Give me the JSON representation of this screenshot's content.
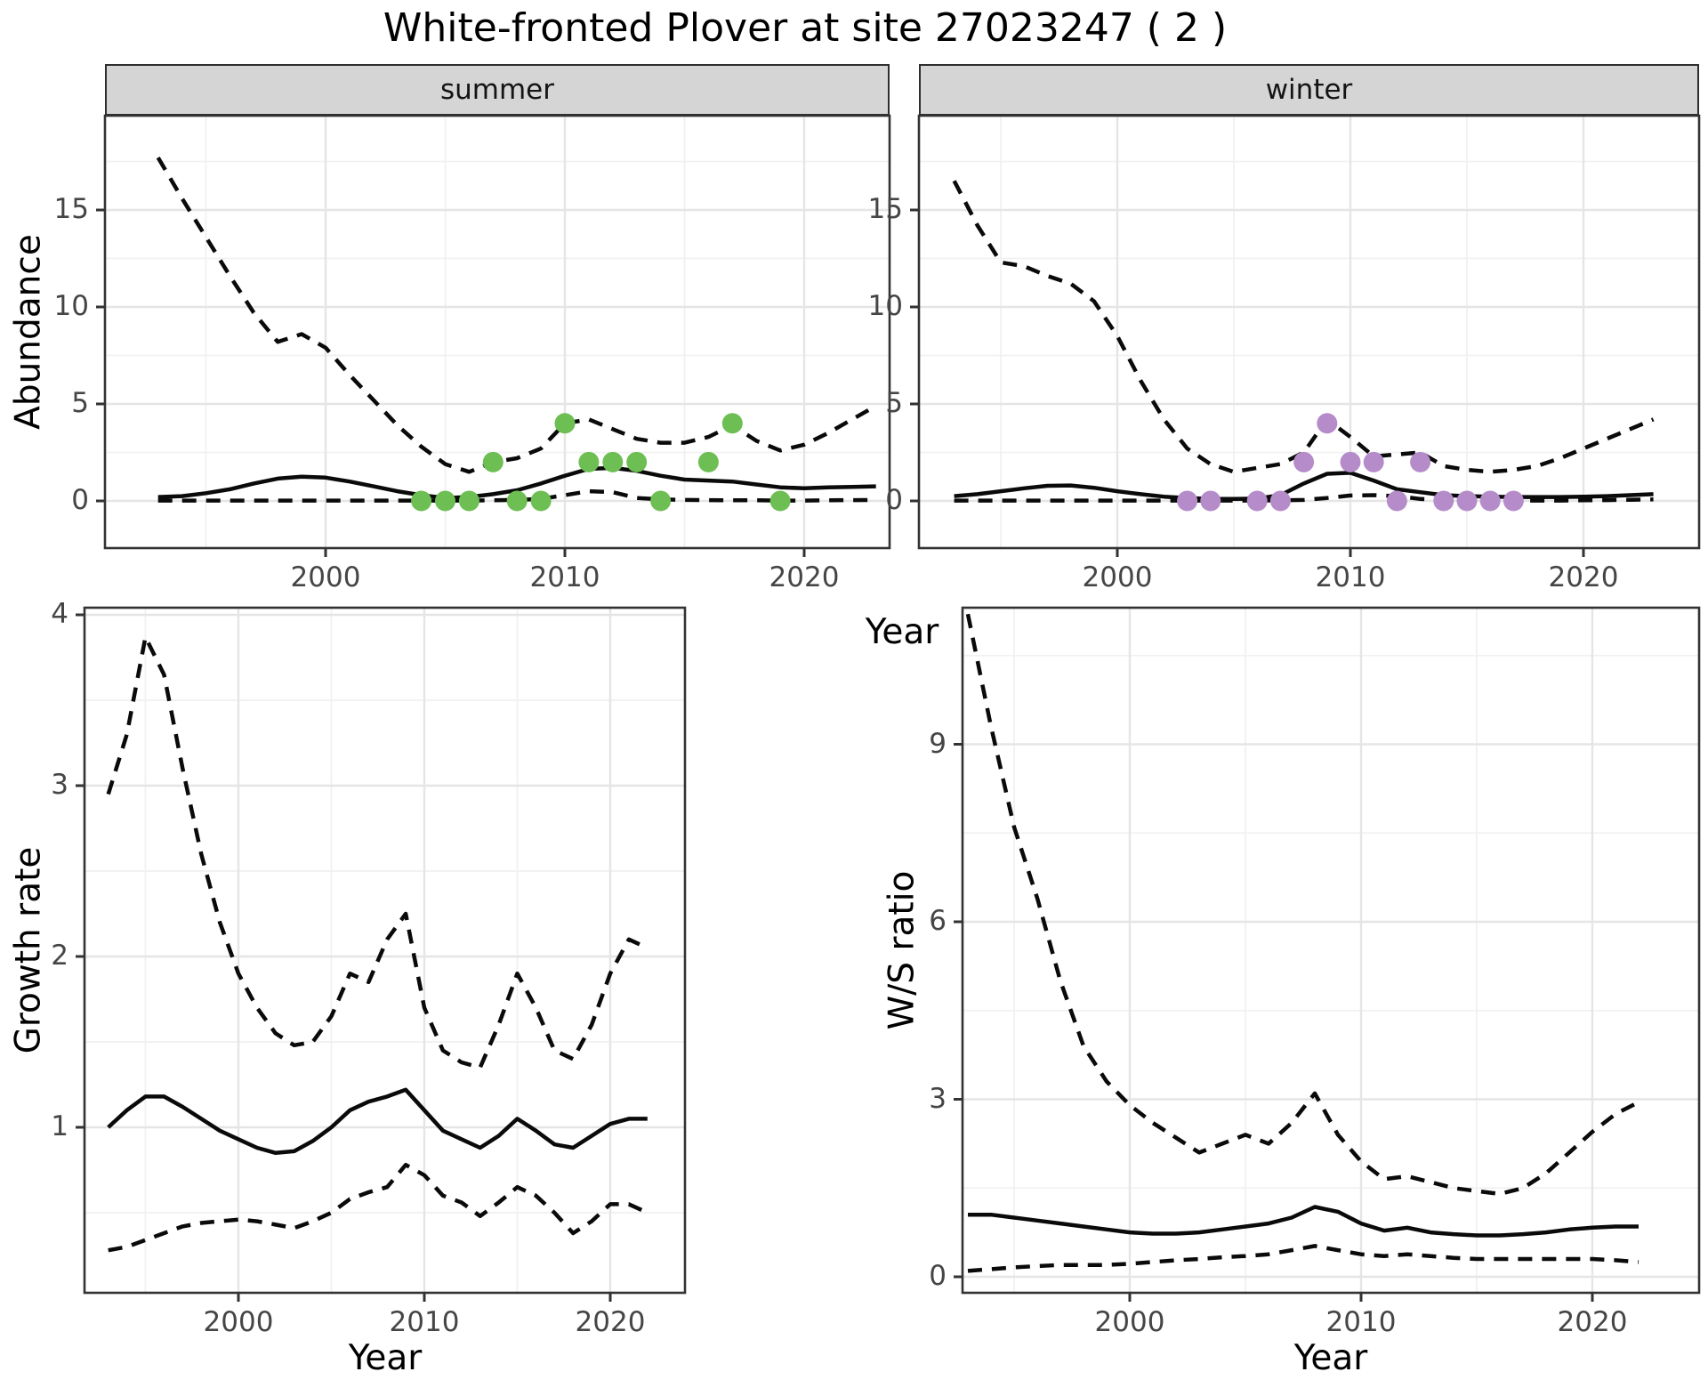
{
  "figure": {
    "title": "White-fronted Plover at site 27023247 ( 2 )",
    "shared_x_axis_label": "Year",
    "colors": {
      "summer_points": "#6dbe53",
      "winter_points": "#b58cc9",
      "line": "#0a0a0a",
      "strip_bg": "#d5d5d5",
      "grid_major": "#e5e5e5",
      "grid_minor": "#f1f1f1",
      "panel_border": "#333333",
      "tick_label": "#454545"
    }
  },
  "chart_data": [
    {
      "id": "abundance_summer",
      "type": "line",
      "facet_label": "summer",
      "ylabel": "Abundance",
      "xlabel": "Year",
      "x_ticks": [
        2000,
        2010,
        2020
      ],
      "y_ticks": [
        0,
        5,
        10,
        15
      ],
      "xlim": [
        1990.8,
        2023.6
      ],
      "ylim": [
        -2.4,
        19.9
      ],
      "grid": true,
      "x": [
        1993,
        1994,
        1995,
        1996,
        1997,
        1998,
        1999,
        2000,
        2001,
        2002,
        2003,
        2004,
        2005,
        2006,
        2007,
        2008,
        2009,
        2010,
        2011,
        2012,
        2013,
        2014,
        2015,
        2016,
        2017,
        2018,
        2019,
        2020,
        2021,
        2022,
        2023
      ],
      "series": [
        {
          "name": "upper 95% CI",
          "style": "dashed",
          "values": [
            17.7,
            15.6,
            13.6,
            11.6,
            9.7,
            8.2,
            8.6,
            7.9,
            6.5,
            5.2,
            3.9,
            2.8,
            1.9,
            1.5,
            2.0,
            2.2,
            2.7,
            4.0,
            4.2,
            3.7,
            3.2,
            3.0,
            3.0,
            3.3,
            3.9,
            3.1,
            2.6,
            2.9,
            3.5,
            4.2,
            4.9
          ]
        },
        {
          "name": "median",
          "style": "solid",
          "values": [
            0.2,
            0.25,
            0.4,
            0.6,
            0.9,
            1.15,
            1.25,
            1.2,
            1.0,
            0.75,
            0.5,
            0.3,
            0.15,
            0.2,
            0.35,
            0.55,
            0.9,
            1.3,
            1.65,
            1.7,
            1.55,
            1.3,
            1.1,
            1.05,
            1.0,
            0.85,
            0.7,
            0.65,
            0.7,
            0.72,
            0.75
          ]
        },
        {
          "name": "lower 95% CI",
          "style": "dashed",
          "values": [
            0.02,
            0.02,
            0.02,
            0.02,
            0.02,
            0.02,
            0.02,
            0.02,
            0.02,
            0.02,
            0.02,
            0.02,
            0.02,
            0.02,
            0.03,
            0.05,
            0.1,
            0.3,
            0.5,
            0.45,
            0.15,
            0.08,
            0.05,
            0.04,
            0.03,
            0.03,
            0.02,
            0.02,
            0.03,
            0.04,
            0.05
          ]
        }
      ],
      "points": {
        "name": "observed summer counts",
        "color_key": "summer_points",
        "xy": [
          [
            2004,
            0
          ],
          [
            2005,
            0
          ],
          [
            2006,
            0
          ],
          [
            2007,
            2
          ],
          [
            2008,
            0
          ],
          [
            2009,
            0
          ],
          [
            2010,
            4
          ],
          [
            2011,
            2
          ],
          [
            2012,
            2
          ],
          [
            2013,
            2
          ],
          [
            2014,
            0
          ],
          [
            2016,
            2
          ],
          [
            2017,
            4
          ],
          [
            2019,
            0
          ]
        ]
      }
    },
    {
      "id": "abundance_winter",
      "type": "line",
      "facet_label": "winter",
      "ylabel": "Abundance",
      "xlabel": "Year",
      "x_ticks": [
        2000,
        2010,
        2020
      ],
      "y_ticks": [
        0,
        5,
        10,
        15
      ],
      "xlim": [
        1991.5,
        2024.5
      ],
      "ylim": [
        -2.4,
        19.9
      ],
      "grid": true,
      "x": [
        1993,
        1994,
        1995,
        1996,
        1997,
        1998,
        1999,
        2000,
        2001,
        2002,
        2003,
        2004,
        2005,
        2006,
        2007,
        2008,
        2009,
        2010,
        2011,
        2012,
        2013,
        2014,
        2015,
        2016,
        2017,
        2018,
        2019,
        2020,
        2021,
        2022,
        2023
      ],
      "series": [
        {
          "name": "upper 95% CI",
          "style": "dashed",
          "values": [
            16.5,
            14.2,
            12.3,
            12.1,
            11.6,
            11.2,
            10.3,
            8.5,
            6.2,
            4.2,
            2.7,
            1.9,
            1.5,
            1.7,
            1.9,
            2.5,
            4.2,
            3.3,
            2.3,
            2.4,
            2.5,
            1.8,
            1.6,
            1.5,
            1.6,
            1.8,
            2.2,
            2.7,
            3.2,
            3.7,
            4.2
          ]
        },
        {
          "name": "median",
          "style": "solid",
          "values": [
            0.25,
            0.35,
            0.5,
            0.65,
            0.78,
            0.8,
            0.68,
            0.5,
            0.35,
            0.22,
            0.15,
            0.1,
            0.1,
            0.12,
            0.3,
            0.9,
            1.4,
            1.45,
            1.05,
            0.6,
            0.45,
            0.3,
            0.25,
            0.22,
            0.2,
            0.2,
            0.2,
            0.22,
            0.25,
            0.3,
            0.35
          ]
        },
        {
          "name": "lower 95% CI",
          "style": "dashed",
          "values": [
            0.02,
            0.02,
            0.02,
            0.02,
            0.02,
            0.02,
            0.02,
            0.02,
            0.02,
            0.02,
            0.02,
            0.02,
            0.02,
            0.02,
            0.03,
            0.05,
            0.15,
            0.28,
            0.3,
            0.25,
            0.1,
            0.05,
            0.03,
            0.02,
            0.02,
            0.02,
            0.02,
            0.03,
            0.04,
            0.06,
            0.08
          ]
        }
      ],
      "points": {
        "name": "observed winter counts",
        "color_key": "winter_points",
        "xy": [
          [
            2003,
            0
          ],
          [
            2004,
            0
          ],
          [
            2006,
            0
          ],
          [
            2007,
            0
          ],
          [
            2008,
            2
          ],
          [
            2009,
            4
          ],
          [
            2010,
            2
          ],
          [
            2011,
            2
          ],
          [
            2012,
            0
          ],
          [
            2013,
            2
          ],
          [
            2014,
            0
          ],
          [
            2015,
            0
          ],
          [
            2016,
            0
          ],
          [
            2017,
            0
          ]
        ]
      }
    },
    {
      "id": "growth_rate",
      "type": "line",
      "facet_label": "",
      "ylabel": "Growth rate",
      "xlabel": "Year",
      "x_ticks": [
        2000,
        2010,
        2020
      ],
      "y_ticks": [
        1,
        2,
        3,
        4
      ],
      "xlim": [
        1991.7,
        2024.0
      ],
      "ylim": [
        0.03,
        4.04
      ],
      "grid": true,
      "x": [
        1993,
        1994,
        1995,
        1996,
        1997,
        1998,
        1999,
        2000,
        2001,
        2002,
        2003,
        2004,
        2005,
        2006,
        2007,
        2008,
        2009,
        2010,
        2011,
        2012,
        2013,
        2014,
        2015,
        2016,
        2017,
        2018,
        2019,
        2020,
        2021,
        2022
      ],
      "series": [
        {
          "name": "upper 95% CI",
          "style": "dashed",
          "values": [
            2.95,
            3.3,
            3.87,
            3.65,
            3.1,
            2.6,
            2.2,
            1.9,
            1.7,
            1.55,
            1.48,
            1.5,
            1.65,
            1.9,
            1.85,
            2.1,
            2.25,
            1.7,
            1.45,
            1.38,
            1.35,
            1.6,
            1.9,
            1.7,
            1.45,
            1.4,
            1.6,
            1.9,
            2.1,
            2.05
          ]
        },
        {
          "name": "median",
          "style": "solid",
          "values": [
            1.0,
            1.1,
            1.18,
            1.18,
            1.12,
            1.05,
            0.98,
            0.93,
            0.88,
            0.85,
            0.86,
            0.92,
            1.0,
            1.1,
            1.15,
            1.18,
            1.22,
            1.1,
            0.98,
            0.93,
            0.88,
            0.95,
            1.05,
            0.98,
            0.9,
            0.88,
            0.95,
            1.02,
            1.05,
            1.05
          ]
        },
        {
          "name": "lower 95% CI",
          "style": "dashed",
          "values": [
            0.28,
            0.3,
            0.34,
            0.38,
            0.42,
            0.44,
            0.45,
            0.46,
            0.45,
            0.43,
            0.41,
            0.45,
            0.5,
            0.58,
            0.62,
            0.65,
            0.78,
            0.72,
            0.6,
            0.56,
            0.48,
            0.56,
            0.65,
            0.6,
            0.5,
            0.38,
            0.45,
            0.55,
            0.55,
            0.5
          ]
        }
      ],
      "points": null
    },
    {
      "id": "ws_ratio",
      "type": "line",
      "facet_label": "",
      "ylabel": "W/S ratio",
      "xlabel": "Year",
      "x_ticks": [
        2000,
        2010,
        2020
      ],
      "y_ticks": [
        0,
        3,
        6,
        9
      ],
      "xlim": [
        1992.8,
        2024.6
      ],
      "ylim": [
        -0.3,
        11.3
      ],
      "grid": true,
      "x": [
        1993,
        1994,
        1995,
        1996,
        1997,
        1998,
        1999,
        2000,
        2001,
        2002,
        2003,
        2004,
        2005,
        2006,
        2007,
        2008,
        2009,
        2010,
        2011,
        2012,
        2013,
        2014,
        2015,
        2016,
        2017,
        2018,
        2019,
        2020,
        2021,
        2022
      ],
      "series": [
        {
          "name": "upper 95% CI",
          "style": "dashed",
          "values": [
            11.2,
            9.3,
            7.6,
            6.4,
            5.0,
            3.9,
            3.3,
            2.9,
            2.6,
            2.35,
            2.1,
            2.25,
            2.4,
            2.25,
            2.6,
            3.1,
            2.4,
            1.95,
            1.65,
            1.7,
            1.6,
            1.5,
            1.45,
            1.4,
            1.5,
            1.75,
            2.1,
            2.45,
            2.75,
            2.95
          ]
        },
        {
          "name": "median",
          "style": "solid",
          "values": [
            1.05,
            1.05,
            1.0,
            0.95,
            0.9,
            0.85,
            0.8,
            0.75,
            0.73,
            0.73,
            0.75,
            0.8,
            0.85,
            0.9,
            1.0,
            1.18,
            1.1,
            0.9,
            0.78,
            0.83,
            0.75,
            0.72,
            0.7,
            0.7,
            0.72,
            0.75,
            0.8,
            0.83,
            0.85,
            0.85
          ]
        },
        {
          "name": "lower 95% CI",
          "style": "dashed",
          "values": [
            0.1,
            0.13,
            0.16,
            0.18,
            0.2,
            0.2,
            0.2,
            0.22,
            0.25,
            0.28,
            0.3,
            0.33,
            0.35,
            0.38,
            0.45,
            0.52,
            0.45,
            0.38,
            0.35,
            0.38,
            0.35,
            0.32,
            0.3,
            0.3,
            0.3,
            0.3,
            0.3,
            0.3,
            0.28,
            0.25
          ]
        }
      ],
      "points": null
    }
  ]
}
